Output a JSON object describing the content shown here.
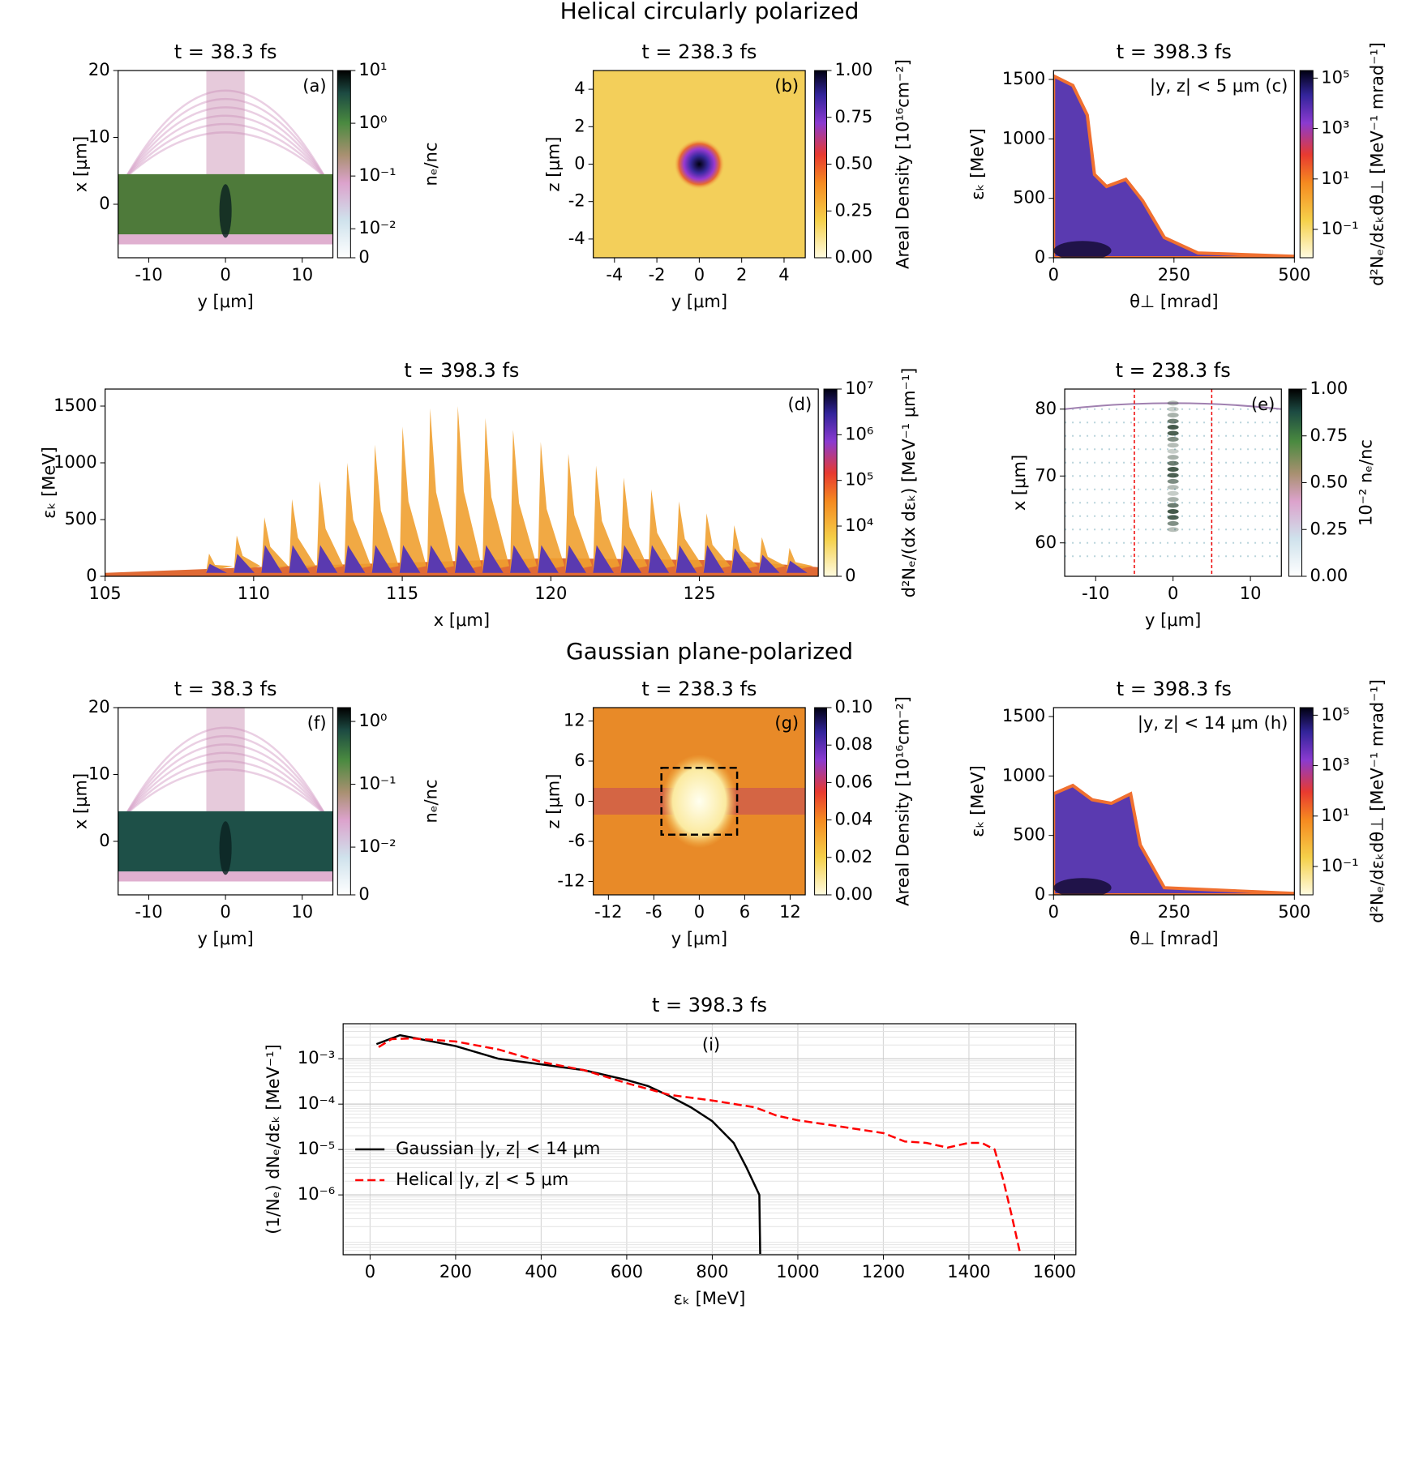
{
  "headings": [
    "Helical circularly polarized",
    "Gaussian plane-polarized"
  ],
  "chart_data": [
    {
      "type": "heatmap",
      "title": "t = 38.3 fs",
      "annotation": "(a)",
      "xlabel": "y [μm]",
      "ylabel": "x [μm]",
      "xlim": [
        -14,
        14
      ],
      "ylim": [
        -8,
        20
      ],
      "xticks": [
        -10,
        0,
        10
      ],
      "yticks": [
        0,
        10,
        20
      ],
      "colorbar": {
        "label": "nₑ/nc",
        "scale": "symlog",
        "lim": [
          0,
          10
        ],
        "linthresh": 0.01,
        "linscale": 0.55,
        "colormap": "cubehelix",
        "ticks": [
          0,
          {
            "value": 0.01,
            "label": "10⁻²"
          },
          {
            "value": 0.1,
            "label": "10⁻¹"
          },
          {
            "value": 1,
            "label": "10⁰"
          },
          {
            "value": 10,
            "label": "10¹"
          }
        ]
      }
    },
    {
      "type": "heatmap",
      "title": "t = 238.3 fs",
      "annotation": "(b)",
      "xlabel": "y [μm]",
      "ylabel": "z [μm]",
      "xlim": [
        -5,
        5
      ],
      "ylim": [
        -5,
        5
      ],
      "xticks": [
        -4,
        -2,
        0,
        2,
        4
      ],
      "yticks": [
        -4,
        -2,
        0,
        2,
        4
      ],
      "colorbar": {
        "label": "Areal Density [10¹⁶cm⁻²]",
        "scale": "linear",
        "lim": [
          0,
          1
        ],
        "colormap": "gnuplot2",
        "ticks": [
          {
            "value": 0,
            "label": "0.00"
          },
          0.25,
          {
            "value": 0.5,
            "label": "0.50"
          },
          0.75,
          {
            "value": 1,
            "label": "1.00"
          }
        ]
      }
    },
    {
      "type": "heatmap",
      "title": "t = 398.3 fs",
      "annotation": "|y, z| < 5 μm (c)",
      "xlabel": "θ⊥ [mrad]",
      "ylabel": "εₖ [MeV]",
      "xlim": [
        0,
        500
      ],
      "ylim": [
        0,
        1575
      ],
      "xticks": [
        0,
        250,
        500
      ],
      "yticks": [
        0,
        500,
        1000,
        1500
      ],
      "colorbar": {
        "label": "d²Nₑ/dεₖdθ⊥ [MeV⁻¹ mrad⁻¹]",
        "scale": "log",
        "lim": [
          0.0075,
          200000
        ],
        "colormap": "gnuplot2",
        "ticks": [
          {
            "value": 0.1,
            "label": "10⁻¹"
          },
          {
            "value": 10,
            "label": "10¹"
          },
          {
            "value": 1000,
            "label": "10³"
          },
          {
            "value": 100000,
            "label": "10⁵"
          }
        ]
      }
    },
    {
      "type": "heatmap",
      "title": "t = 398.3 fs",
      "annotation": "(d)",
      "xlabel": "x [μm]",
      "ylabel": "εₖ [MeV]",
      "xlim": [
        105,
        129
      ],
      "ylim": [
        0,
        1650
      ],
      "xticks": [
        105,
        110,
        115,
        120,
        125
      ],
      "yticks": [
        0,
        500,
        1000,
        1500
      ],
      "colorbar": {
        "label": "d²Nₑ/(dx dεₖ) [MeV⁻¹ μm⁻¹]",
        "scale": "symlog",
        "lim": [
          0,
          10000000
        ],
        "linthresh": 10000,
        "linscale": 1.1,
        "colormap": "gnuplot2",
        "ticks": [
          0,
          {
            "value": 10000,
            "label": "10⁴"
          },
          {
            "value": 100000,
            "label": "10⁵"
          },
          {
            "value": 1000000,
            "label": "10⁶"
          },
          {
            "value": 10000000,
            "label": "10⁷"
          }
        ]
      }
    },
    {
      "type": "heatmap",
      "title": "t = 238.3 fs",
      "annotation": "(e)",
      "xlabel": "y [μm]",
      "ylabel": "x [μm]",
      "xlim": [
        -14,
        14
      ],
      "ylim": [
        55,
        83
      ],
      "xticks": [
        -10,
        0,
        10
      ],
      "yticks": [
        60,
        70,
        80
      ],
      "vlines": [
        -5,
        5
      ],
      "colorbar": {
        "label": "10⁻² nₑ/nc",
        "scale": "linear",
        "lim": [
          0,
          1
        ],
        "colormap": "cubehelix",
        "ticks": [
          {
            "value": 0,
            "label": "0.00"
          },
          0.25,
          {
            "value": 0.5,
            "label": "0.50"
          },
          0.75,
          {
            "value": 1,
            "label": "1.00"
          }
        ]
      }
    },
    {
      "type": "heatmap",
      "title": "t = 38.3 fs",
      "annotation": "(f)",
      "xlabel": "y [μm]",
      "ylabel": "x [μm]",
      "xlim": [
        -14,
        14
      ],
      "ylim": [
        -8,
        20
      ],
      "xticks": [
        -10,
        0,
        10
      ],
      "yticks": [
        0,
        10,
        20
      ],
      "colorbar": {
        "label": "nₑ/nc",
        "scale": "symlog",
        "lim": [
          0,
          1.66
        ],
        "linthresh": 0.01,
        "linscale": 0.76,
        "colormap": "cubehelix",
        "ticks": [
          0,
          {
            "value": 0.01,
            "label": "10⁻²"
          },
          {
            "value": 0.1,
            "label": "10⁻¹"
          },
          {
            "value": 1,
            "label": "10⁰"
          }
        ]
      }
    },
    {
      "type": "heatmap",
      "title": "t = 238.3 fs",
      "annotation": "(g)",
      "xlabel": "y [μm]",
      "ylabel": "z [μm]",
      "xlim": [
        -14,
        14
      ],
      "ylim": [
        -14,
        14
      ],
      "xticks": [
        -12,
        -6,
        0,
        6,
        12
      ],
      "yticks": [
        -12,
        -6,
        0,
        6,
        12
      ],
      "box": [
        -5,
        5,
        -5,
        5
      ],
      "colorbar": {
        "label": "Areal Density [10¹⁶cm⁻²]",
        "scale": "linear",
        "lim": [
          0,
          0.1
        ],
        "colormap": "gnuplot2",
        "ticks": [
          {
            "value": 0,
            "label": "0.00"
          },
          0.02,
          0.04,
          0.06,
          0.08,
          {
            "value": 0.1,
            "label": "0.10"
          }
        ]
      }
    },
    {
      "type": "heatmap",
      "title": "t = 398.3 fs",
      "annotation": "|y, z| < 14 μm (h)",
      "xlabel": "θ⊥ [mrad]",
      "ylabel": "εₖ [MeV]",
      "xlim": [
        0,
        500
      ],
      "ylim": [
        0,
        1575
      ],
      "xticks": [
        0,
        250,
        500
      ],
      "yticks": [
        0,
        500,
        1000,
        1500
      ],
      "colorbar": {
        "label": "d²Nₑ/dεₖdθ⊥ [MeV⁻¹ mrad⁻¹]",
        "scale": "log",
        "lim": [
          0.0075,
          200000
        ],
        "colormap": "gnuplot2",
        "ticks": [
          {
            "value": 0.1,
            "label": "10⁻¹"
          },
          {
            "value": 10,
            "label": "10¹"
          },
          {
            "value": 1000,
            "label": "10³"
          },
          {
            "value": 100000,
            "label": "10⁵"
          }
        ]
      }
    },
    {
      "type": "line",
      "title": "t = 398.3 fs",
      "annotation": "(i)",
      "xlabel": "εₖ [MeV]",
      "ylabel": "(1/Nₑ) dNₑ/dεₖ [MeV⁻¹]",
      "xlim": [
        -63,
        1650
      ],
      "ylim": [
        4.8e-08,
        0.0059
      ],
      "yscale": "log",
      "grid": true,
      "legend": "lower left",
      "xticks": [
        0,
        200,
        400,
        600,
        800,
        1000,
        1200,
        1400,
        1600
      ],
      "yticks": [
        {
          "value": 1e-06,
          "label": "10⁻⁶"
        },
        {
          "value": 1e-05,
          "label": "10⁻⁵"
        },
        {
          "value": 0.0001,
          "label": "10⁻⁴"
        },
        {
          "value": 0.001,
          "label": "10⁻³"
        }
      ],
      "series": [
        {
          "name": "Gaussian |y, z| < 14 μm",
          "color": "#000000",
          "dash": false,
          "x": [
            15,
            70,
            200,
            300,
            400,
            500,
            600,
            650,
            700,
            750,
            800,
            850,
            880,
            910,
            912
          ],
          "values": [
            0.0021,
            0.0033,
            0.0019,
            0.001,
            0.00075,
            0.00056,
            0.00034,
            0.00025,
            0.00015,
            8.5e-05,
            4.2e-05,
            1.4e-05,
            4e-06,
            1e-06,
            5e-08
          ]
        },
        {
          "name": "Helical |y, z| < 5 μm",
          "color": "#ff0000",
          "dash": true,
          "x": [
            20,
            50,
            100,
            200,
            300,
            400,
            500,
            600,
            700,
            800,
            900,
            950,
            1000,
            1100,
            1200,
            1250,
            1300,
            1350,
            1400,
            1430,
            1460,
            1480,
            1500,
            1520
          ],
          "values": [
            0.0018,
            0.0027,
            0.0028,
            0.0024,
            0.0016,
            0.00085,
            0.00056,
            0.00029,
            0.00016,
            0.00012,
            8.5e-05,
            5.6e-05,
            4.4e-05,
            3.2e-05,
            2.3e-05,
            1.5e-05,
            1.4e-05,
            1.1e-05,
            1.4e-05,
            1.4e-05,
            1e-05,
            2.2e-06,
            3.5e-07,
            5e-08
          ]
        }
      ]
    }
  ]
}
